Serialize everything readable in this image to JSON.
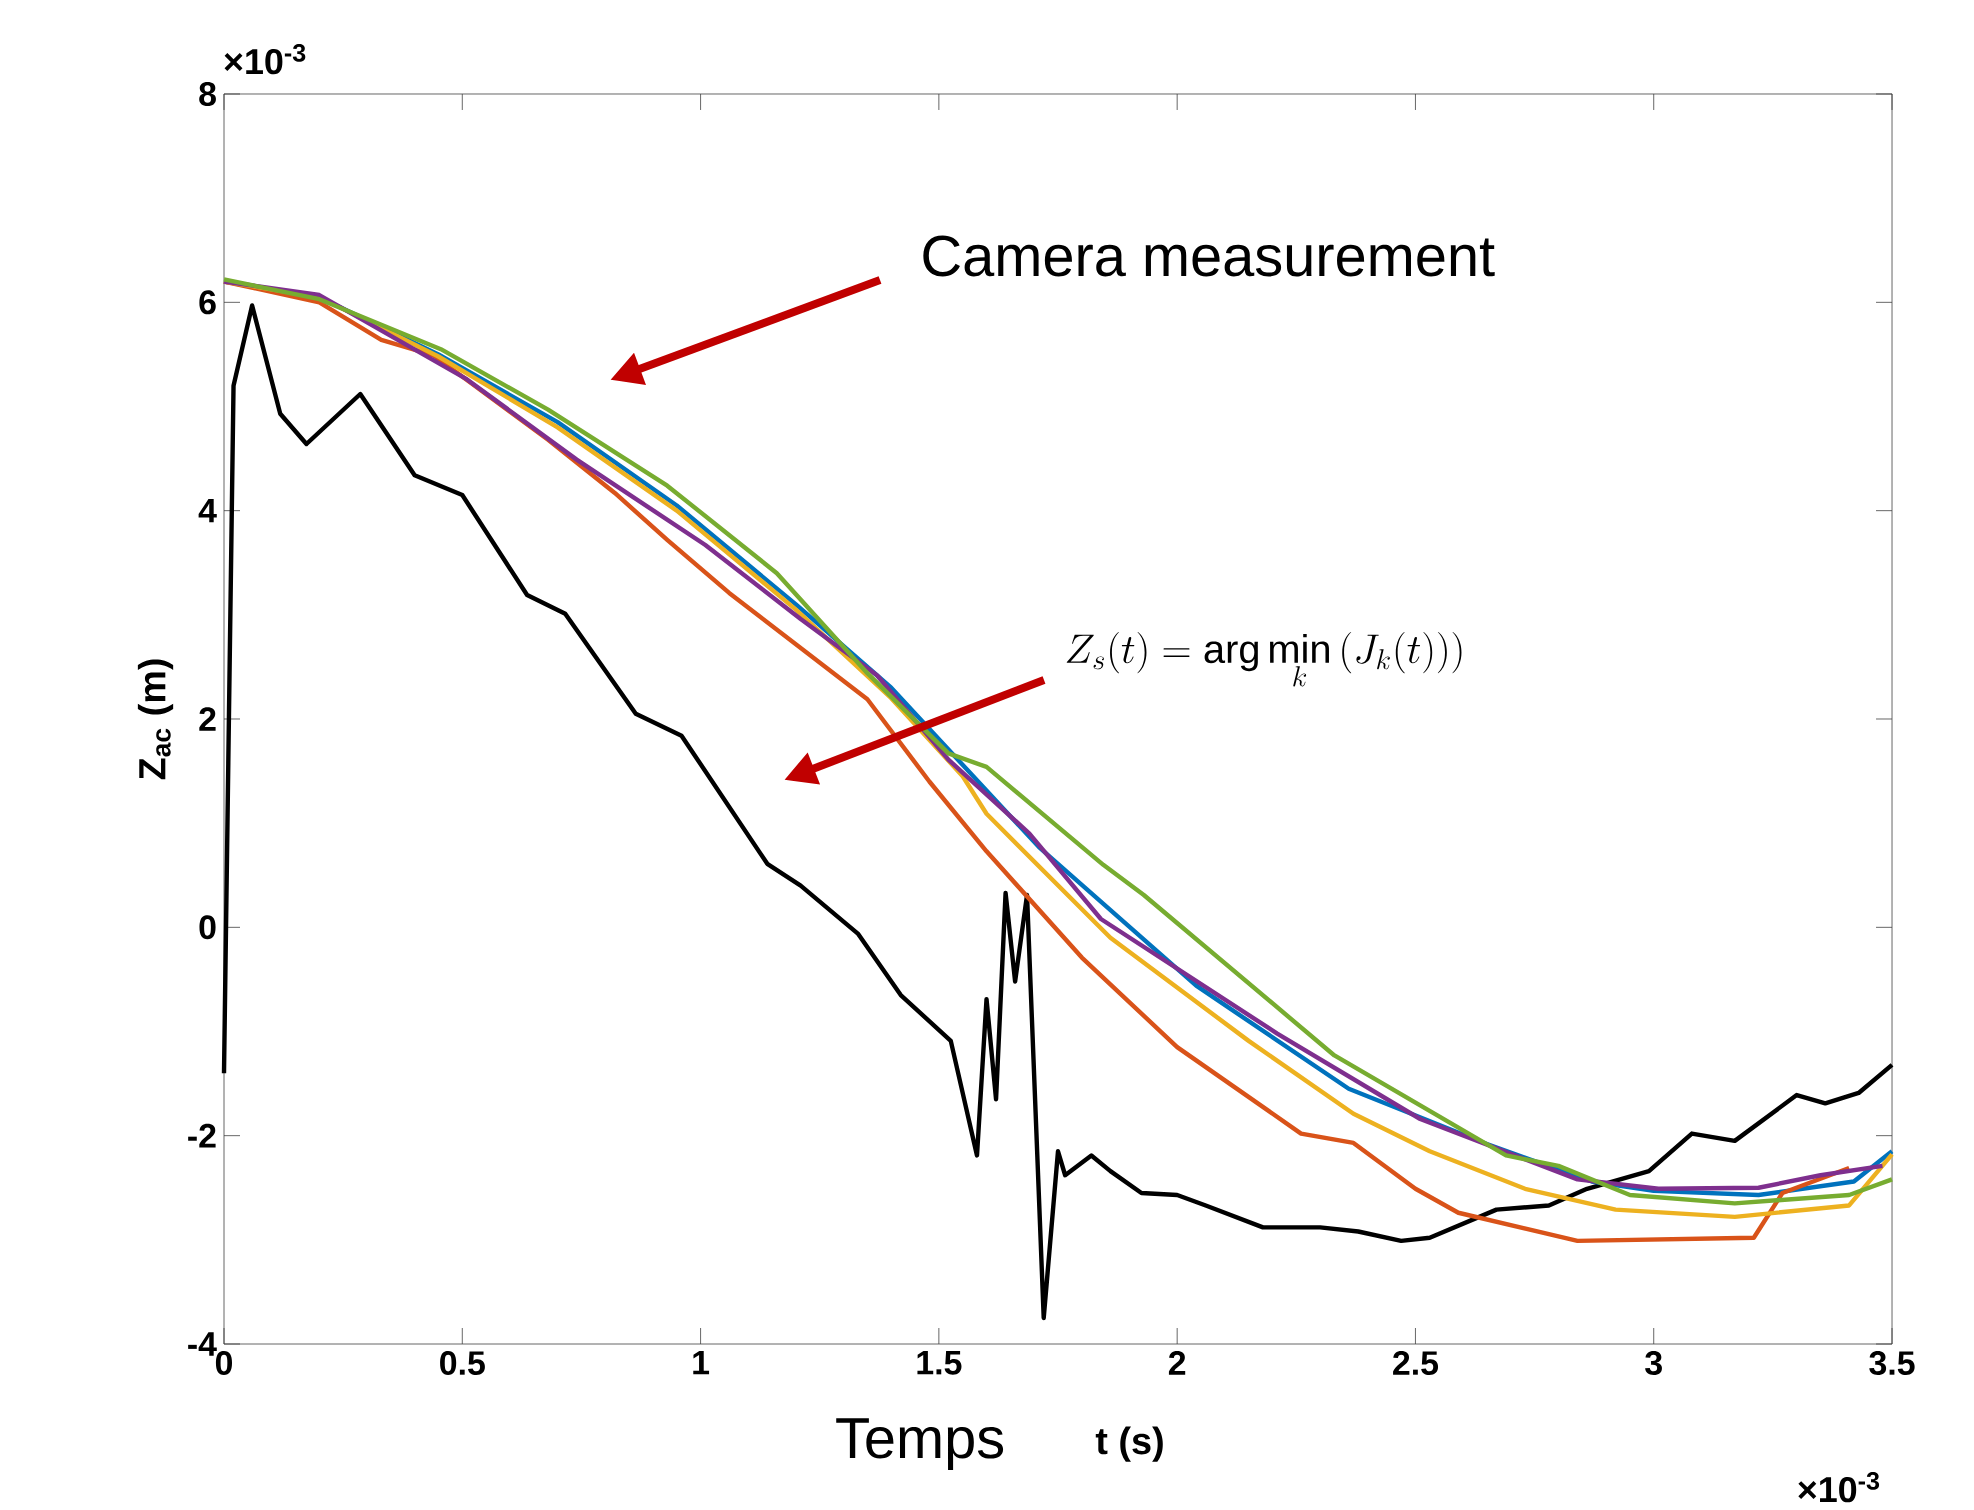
{
  "chart_data": {
    "type": "line",
    "xlabel": "t (s)",
    "ylabel": "Z$_{ac}$ (m)",
    "xlim": [
      0,
      3.5
    ],
    "ylim": [
      -4,
      8
    ],
    "xticks": [
      0,
      0.5,
      1,
      1.5,
      2,
      2.5,
      3,
      3.5
    ],
    "yticks": [
      -4,
      -2,
      0,
      2,
      4,
      6,
      8
    ],
    "grid": false,
    "annotations": [
      "Camera measurement",
      "Z_s(t) = \\arg\\min_k \\left(J_k(t))\\right)",
      "Temps",
      "×10$^{-3}$",
      "×10$^{-3}$"
    ],
    "series": [
      {
        "color": "#000000",
        "x": [
          0,
          0.02,
          0.059,
          0.118,
          0.173,
          0.286,
          0.4,
          0.5,
          0.636,
          0.716,
          0.864,
          0.96,
          1.14,
          1.21,
          1.33,
          1.42,
          1.525,
          1.58,
          1.6,
          1.62,
          1.64,
          1.66,
          1.685,
          1.72,
          1.75,
          1.765,
          1.82,
          1.86,
          1.925,
          2.0,
          2.06,
          2.18,
          2.3,
          2.38,
          2.47,
          2.53,
          2.67,
          2.78,
          2.86,
          2.99,
          3.08,
          3.17,
          3.3,
          3.36,
          3.43,
          3.5
        ],
        "values": [
          -1.4,
          5.2,
          5.97,
          4.93,
          4.64,
          5.12,
          4.34,
          4.15,
          3.19,
          3.01,
          2.05,
          1.84,
          0.61,
          0.4,
          -0.06,
          -0.65,
          -1.09,
          -2.19,
          -0.69,
          -1.65,
          0.33,
          -0.52,
          0.31,
          -3.75,
          -2.15,
          -2.38,
          -2.19,
          -2.34,
          -2.55,
          -2.57,
          -2.67,
          -2.88,
          -2.88,
          -2.92,
          -3.01,
          -2.98,
          -2.71,
          -2.67,
          -2.51,
          -2.34,
          -1.98,
          -2.05,
          -1.61,
          -1.69,
          -1.59,
          -1.32
        ]
      },
      {
        "color": "#0072bd",
        "x": [
          0,
          0.2,
          0.45,
          0.7,
          0.95,
          1.2,
          1.4,
          1.71,
          2.04,
          2.36,
          2.65,
          2.87,
          3.0,
          3.22,
          3.42,
          3.5
        ],
        "values": [
          6.2,
          6.05,
          5.5,
          4.85,
          4.05,
          3.1,
          2.3,
          0.77,
          -0.56,
          -1.55,
          -2.08,
          -2.44,
          -2.53,
          -2.57,
          -2.44,
          -2.15
        ]
      },
      {
        "color": "#d95319",
        "x": [
          0,
          0.2,
          0.33,
          0.44,
          0.68,
          0.82,
          0.93,
          1.06,
          1.35,
          1.48,
          1.6,
          1.8,
          2.0,
          2.26,
          2.37,
          2.5,
          2.59,
          2.84,
          3.21,
          3.27,
          3.41
        ],
        "values": [
          6.2,
          6.0,
          5.64,
          5.49,
          4.68,
          4.17,
          3.72,
          3.21,
          2.19,
          1.4,
          0.73,
          -0.29,
          -1.15,
          -1.98,
          -2.07,
          -2.51,
          -2.74,
          -3.01,
          -2.98,
          -2.55,
          -2.31
        ]
      },
      {
        "color": "#edb120",
        "x": [
          0,
          0.2,
          0.45,
          0.7,
          0.95,
          1.2,
          1.4,
          1.55,
          1.6,
          1.86,
          2.15,
          2.37,
          2.53,
          2.73,
          2.92,
          3.17,
          3.41,
          3.5
        ],
        "values": [
          6.2,
          6.05,
          5.48,
          4.8,
          4.0,
          3.05,
          2.2,
          1.45,
          1.09,
          -0.1,
          -1.09,
          -1.79,
          -2.15,
          -2.51,
          -2.71,
          -2.78,
          -2.67,
          -2.18
        ]
      },
      {
        "color": "#7e2f8e",
        "x": [
          0,
          0.2,
          0.51,
          0.74,
          1.01,
          1.21,
          1.37,
          1.52,
          1.69,
          1.84,
          2.21,
          2.51,
          2.84,
          3.01,
          3.22,
          3.35,
          3.48
        ],
        "values": [
          6.2,
          6.07,
          5.26,
          4.49,
          3.67,
          2.96,
          2.42,
          1.61,
          0.9,
          0.08,
          -1.02,
          -1.84,
          -2.42,
          -2.51,
          -2.5,
          -2.38,
          -2.29
        ]
      },
      {
        "color": "#77ac30",
        "x": [
          0,
          0.2,
          0.455,
          0.68,
          0.93,
          1.16,
          1.35,
          1.52,
          1.6,
          1.845,
          1.93,
          2.33,
          2.69,
          2.8,
          2.95,
          3.17,
          3.41,
          3.5
        ],
        "values": [
          6.22,
          6.03,
          5.55,
          4.97,
          4.24,
          3.4,
          2.44,
          1.67,
          1.54,
          0.6,
          0.31,
          -1.23,
          -2.19,
          -2.29,
          -2.57,
          -2.65,
          -2.57,
          -2.42
        ]
      }
    ]
  }
}
